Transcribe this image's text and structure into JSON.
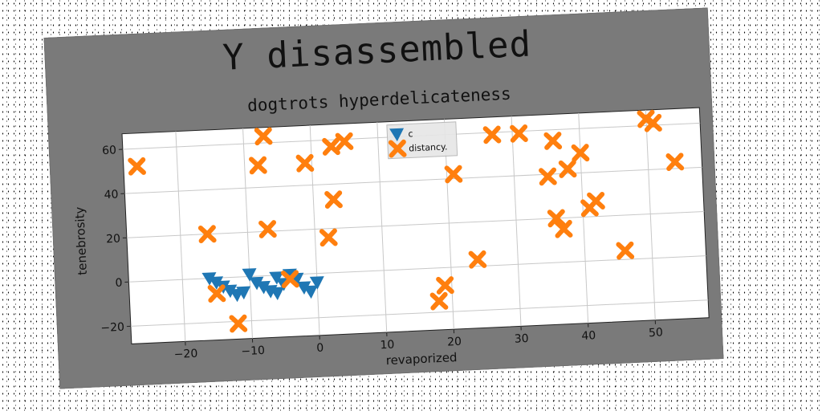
{
  "chart_data": {
    "type": "scatter",
    "title": "Y disassembled",
    "subtitle": "dogtrots hyperdelicateness",
    "xlabel": "revaporized",
    "ylabel": "tenebrosity",
    "xlim": [
      -28,
      58
    ],
    "ylim": [
      -28,
      67
    ],
    "xticks": [
      -20,
      -10,
      0,
      10,
      20,
      30,
      40,
      50
    ],
    "yticks": [
      -20,
      0,
      20,
      40,
      60
    ],
    "grid": true,
    "legend_position": "top-center",
    "series": [
      {
        "name": "c",
        "marker": "triangle-down",
        "color": "#1f77b4",
        "points": [
          [
            -16,
            0
          ],
          [
            -15,
            -2
          ],
          [
            -14,
            -4
          ],
          [
            -13,
            -6
          ],
          [
            -12,
            -8
          ],
          [
            -11,
            -7
          ],
          [
            -10,
            1
          ],
          [
            -9,
            -3
          ],
          [
            -8,
            -5
          ],
          [
            -7,
            -7
          ],
          [
            -6,
            -8
          ],
          [
            -5,
            -4
          ],
          [
            -4,
            0
          ],
          [
            -3,
            -2
          ],
          [
            -2,
            -6
          ],
          [
            -1,
            -8
          ],
          [
            0,
            -4
          ],
          [
            -6,
            -1
          ]
        ]
      },
      {
        "name": "distancy.",
        "marker": "x",
        "color": "#ff7f0e",
        "points": [
          [
            -26,
            52
          ],
          [
            -16,
            20
          ],
          [
            -15,
            -7
          ],
          [
            -12,
            -21
          ],
          [
            -8,
            50
          ],
          [
            -7,
            21
          ],
          [
            -7,
            63
          ],
          [
            -4,
            -2
          ],
          [
            -1,
            50
          ],
          [
            2,
            16
          ],
          [
            3,
            33
          ],
          [
            3,
            57
          ],
          [
            5,
            59
          ],
          [
            18,
            -15
          ],
          [
            19,
            -8
          ],
          [
            21,
            42
          ],
          [
            24,
            3
          ],
          [
            27,
            59
          ],
          [
            31,
            59
          ],
          [
            35,
            39
          ],
          [
            36,
            20
          ],
          [
            36,
            55
          ],
          [
            37,
            15
          ],
          [
            38,
            42
          ],
          [
            40,
            49
          ],
          [
            41,
            24
          ],
          [
            42,
            27
          ],
          [
            46,
            4
          ],
          [
            50,
            63
          ],
          [
            51,
            61
          ],
          [
            54,
            43
          ]
        ]
      }
    ]
  }
}
